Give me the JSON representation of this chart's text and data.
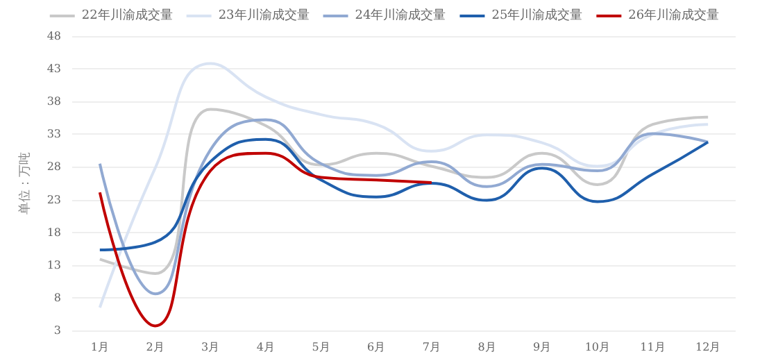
{
  "chart_data": {
    "type": "line",
    "ylabel": "单位：万吨",
    "categories": [
      "1月",
      "2月",
      "3月",
      "4月",
      "5月",
      "6月",
      "7月",
      "8月",
      "9月",
      "10月",
      "11月",
      "12月"
    ],
    "series": [
      {
        "name": "22年川渝成交量",
        "color": "#c9c9c9",
        "values": [
          13.9,
          11.7,
          36.8,
          34.3,
          28.3,
          30.1,
          28.1,
          26.4,
          30.1,
          25.3,
          34.5,
          35.6
        ]
      },
      {
        "name": "23年川渝成交量",
        "color": "#d9e3f3",
        "values": [
          6.5,
          27.8,
          43.8,
          38.7,
          36,
          34.5,
          30.4,
          32.9,
          31.7,
          28.1,
          33,
          34.5
        ]
      },
      {
        "name": "24年川渝成交量",
        "color": "#91a9d2",
        "values": [
          28.5,
          8.6,
          30.6,
          35.2,
          28.5,
          26.7,
          28.8,
          25,
          28.4,
          27.4,
          33.1,
          31.8
        ]
      },
      {
        "name": "25年川渝成交量",
        "color": "#1f5fac",
        "values": [
          15.3,
          16.5,
          28.8,
          32.2,
          26,
          23.4,
          25.5,
          22.9,
          27.8,
          22.7,
          26.9,
          31.8
        ]
      },
      {
        "name": "26年川渝成交量",
        "color": "#c00000",
        "values": [
          24.1,
          3.7,
          27.4,
          30.1,
          26.4,
          26,
          25.6,
          null,
          null,
          null,
          null,
          null
        ]
      }
    ],
    "ylim": [
      3,
      48
    ],
    "yticks": [
      3,
      8,
      13,
      18,
      23,
      28,
      33,
      38,
      43,
      48
    ],
    "grid": "y",
    "legend": "top",
    "marker": "none",
    "line_style": "solid"
  }
}
